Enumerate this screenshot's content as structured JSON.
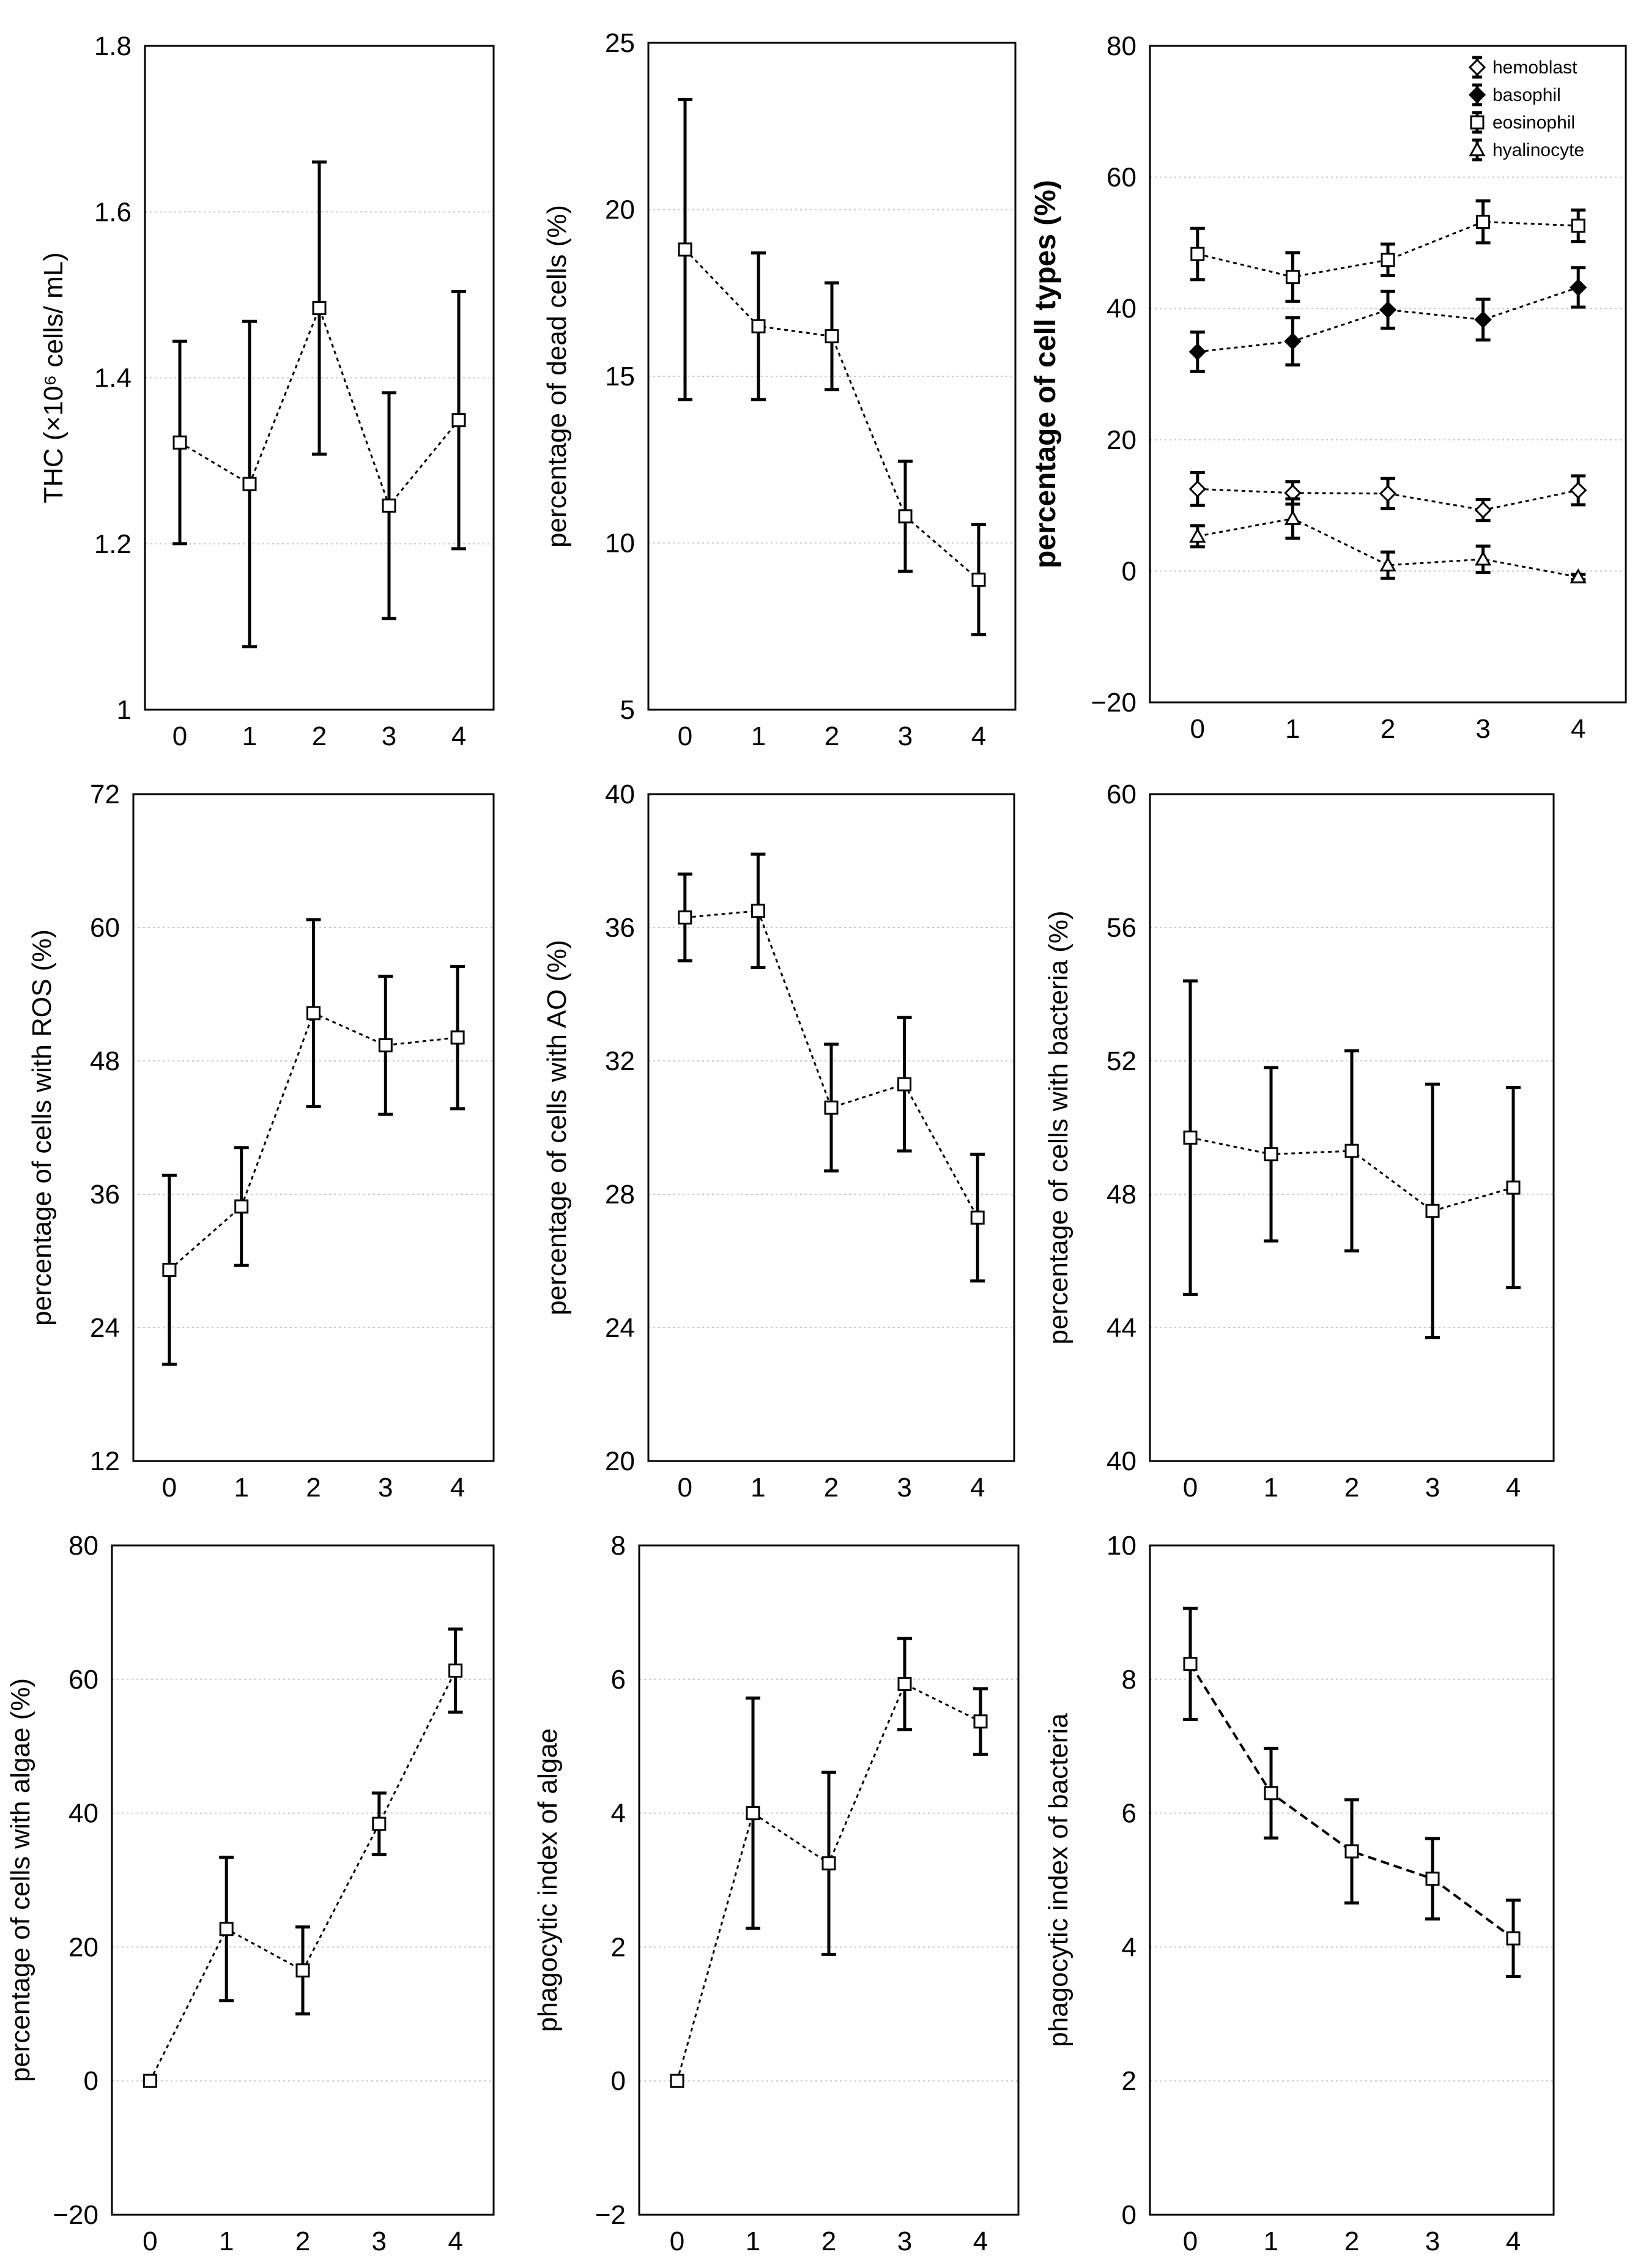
{
  "chart_data": [
    {
      "id": "thc",
      "type": "line",
      "title": "",
      "xlabel": "",
      "ylabel": "THC (×10⁶ cells/ mL)",
      "categories": [
        "0",
        "1",
        "2",
        "3",
        "4"
      ],
      "ylim": [
        1,
        1.8
      ],
      "yticks": [
        "1",
        "1.2",
        "1.4",
        "1.6",
        "1.8"
      ],
      "series": [
        {
          "name": "THC",
          "marker": "square",
          "values": [
            1.322,
            1.272,
            1.484,
            1.246,
            1.349
          ],
          "errors": [
            0.122,
            0.196,
            0.176,
            0.136,
            0.155
          ]
        }
      ]
    },
    {
      "id": "dead-cells",
      "type": "line",
      "title": "",
      "xlabel": "",
      "ylabel": "percentage of dead cells (%)",
      "categories": [
        "0",
        "1",
        "2",
        "3",
        "4"
      ],
      "ylim": [
        5,
        25
      ],
      "yticks": [
        "5",
        "10",
        "15",
        "20",
        "25"
      ],
      "series": [
        {
          "name": "dead cells",
          "marker": "square",
          "values": [
            18.8,
            16.5,
            16.2,
            10.8,
            8.9
          ],
          "errors": [
            4.5,
            2.2,
            1.6,
            1.65,
            1.65
          ]
        }
      ]
    },
    {
      "id": "cell-types",
      "type": "line",
      "title": "",
      "xlabel": "",
      "ylabel": "percentage of cell types (%)",
      "categories": [
        "0",
        "1",
        "2",
        "3",
        "4"
      ],
      "ylim": [
        -20,
        80
      ],
      "yticks": [
        "−20",
        "0",
        "20",
        "40",
        "60",
        "80"
      ],
      "legend": "top-right",
      "series": [
        {
          "name": "hemoblast",
          "marker": "diamond",
          "values": [
            12.5,
            11.9,
            11.8,
            9.3,
            12.3
          ],
          "errors": [
            2.5,
            1.7,
            2.3,
            1.6,
            2.2
          ]
        },
        {
          "name": "basophil",
          "marker": "diamond-filled",
          "values": [
            33.4,
            35.0,
            39.8,
            38.3,
            43.2
          ],
          "errors": [
            3.0,
            3.6,
            2.8,
            3.1,
            3.0
          ]
        },
        {
          "name": "eosinophil",
          "marker": "square",
          "values": [
            48.3,
            44.8,
            47.4,
            53.2,
            52.6
          ],
          "errors": [
            3.9,
            3.7,
            2.4,
            3.2,
            2.4
          ]
        },
        {
          "name": "hyalinocyte",
          "marker": "triangle",
          "values": [
            5.3,
            8.0,
            0.9,
            1.8,
            -0.9
          ],
          "errors": [
            1.6,
            3.0,
            2.0,
            2.0,
            0.4
          ]
        }
      ]
    },
    {
      "id": "ros",
      "type": "line",
      "title": "",
      "xlabel": "",
      "ylabel": "percentage of cells with ROS (%)",
      "categories": [
        "0",
        "1",
        "2",
        "3",
        "4"
      ],
      "ylim": [
        12,
        72
      ],
      "yticks": [
        "12",
        "24",
        "36",
        "48",
        "60",
        "72"
      ],
      "series": [
        {
          "name": "ROS",
          "marker": "square",
          "values": [
            29.2,
            34.9,
            52.3,
            49.4,
            50.1
          ],
          "errors": [
            8.5,
            5.3,
            8.4,
            6.2,
            6.4
          ]
        }
      ]
    },
    {
      "id": "ao",
      "type": "line",
      "title": "",
      "xlabel": "",
      "ylabel": "percentage of cells with AO (%)",
      "categories": [
        "0",
        "1",
        "2",
        "3",
        "4"
      ],
      "ylim": [
        20,
        40
      ],
      "yticks": [
        "20",
        "24",
        "28",
        "32",
        "36",
        "40"
      ],
      "series": [
        {
          "name": "AO",
          "marker": "square",
          "values": [
            36.3,
            36.5,
            30.6,
            31.3,
            27.3
          ],
          "errors": [
            1.3,
            1.7,
            1.9,
            2.0,
            1.9
          ]
        }
      ]
    },
    {
      "id": "bacteria-pct",
      "type": "line",
      "title": "",
      "xlabel": "",
      "ylabel": "percentage of cells with bacteria (%)",
      "categories": [
        "0",
        "1",
        "2",
        "3",
        "4"
      ],
      "ylim": [
        40,
        60
      ],
      "yticks": [
        "40",
        "44",
        "48",
        "52",
        "56",
        "60"
      ],
      "series": [
        {
          "name": "bacteria",
          "marker": "square",
          "values": [
            49.7,
            49.2,
            49.3,
            47.5,
            48.2
          ],
          "errors": [
            4.7,
            2.6,
            3.0,
            3.8,
            3.0
          ]
        }
      ]
    },
    {
      "id": "algae-pct",
      "type": "line",
      "title": "",
      "xlabel": "",
      "ylabel": "percentage of cells with algae (%)",
      "categories": [
        "0",
        "1",
        "2",
        "3",
        "4"
      ],
      "ylim": [
        -20,
        80
      ],
      "yticks": [
        "−20",
        "0",
        "20",
        "40",
        "60",
        "80"
      ],
      "series": [
        {
          "name": "algae",
          "marker": "square",
          "values": [
            0.0,
            22.7,
            16.5,
            38.4,
            61.3
          ],
          "errors": [
            0.0,
            10.7,
            6.5,
            4.6,
            6.2
          ]
        }
      ]
    },
    {
      "id": "algae-index",
      "type": "line",
      "title": "",
      "xlabel": "",
      "ylabel": "phagocytic index of algae",
      "categories": [
        "0",
        "1",
        "2",
        "3",
        "4"
      ],
      "ylim": [
        -2,
        8
      ],
      "yticks": [
        "−2",
        "0",
        "2",
        "4",
        "6",
        "8"
      ],
      "series": [
        {
          "name": "algae index",
          "marker": "square",
          "values": [
            0.0,
            4.0,
            3.25,
            5.93,
            5.37
          ],
          "errors": [
            0.0,
            1.72,
            1.36,
            0.68,
            0.49
          ]
        }
      ]
    },
    {
      "id": "bacteria-index",
      "type": "line",
      "title": "",
      "xlabel": "",
      "ylabel": "phagocytic index of bacteria",
      "categories": [
        "0",
        "1",
        "2",
        "3",
        "4"
      ],
      "ylim": [
        0,
        10
      ],
      "yticks": [
        "0",
        "2",
        "4",
        "6",
        "8",
        "10"
      ],
      "bold": true,
      "series": [
        {
          "name": "bacteria index",
          "marker": "square",
          "values": [
            8.23,
            6.3,
            5.43,
            5.02,
            4.13
          ],
          "errors": [
            0.83,
            0.67,
            0.77,
            0.6,
            0.57
          ]
        }
      ]
    }
  ]
}
